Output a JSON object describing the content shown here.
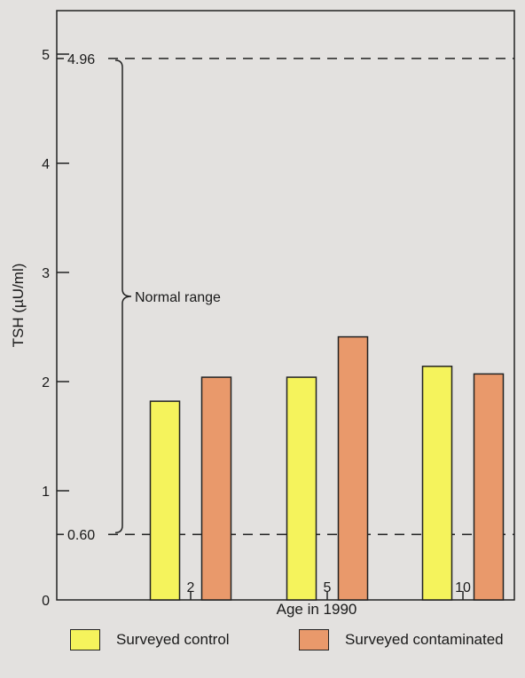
{
  "chart_data": {
    "type": "bar",
    "title": "",
    "ylabel": "TSH (µU/ml)",
    "xlabel": "Age in 1990",
    "categories": [
      "2",
      "5",
      "10"
    ],
    "series": [
      {
        "name": "Surveyed control",
        "color": "#f5f35c",
        "values": [
          1.82,
          2.04,
          2.14
        ]
      },
      {
        "name": "Surveyed contaminated",
        "color": "#e9996b",
        "values": [
          2.04,
          2.41,
          2.07
        ]
      }
    ],
    "ylim": [
      0,
      5.2
    ],
    "yticks": [
      0,
      1,
      2,
      3,
      4,
      5
    ],
    "reference_lines": [
      {
        "value": 4.96,
        "label": "4.96"
      },
      {
        "value": 0.6,
        "label": "0.60"
      }
    ],
    "annotation": "Normal range",
    "grid": false,
    "legend_position": "bottom"
  }
}
